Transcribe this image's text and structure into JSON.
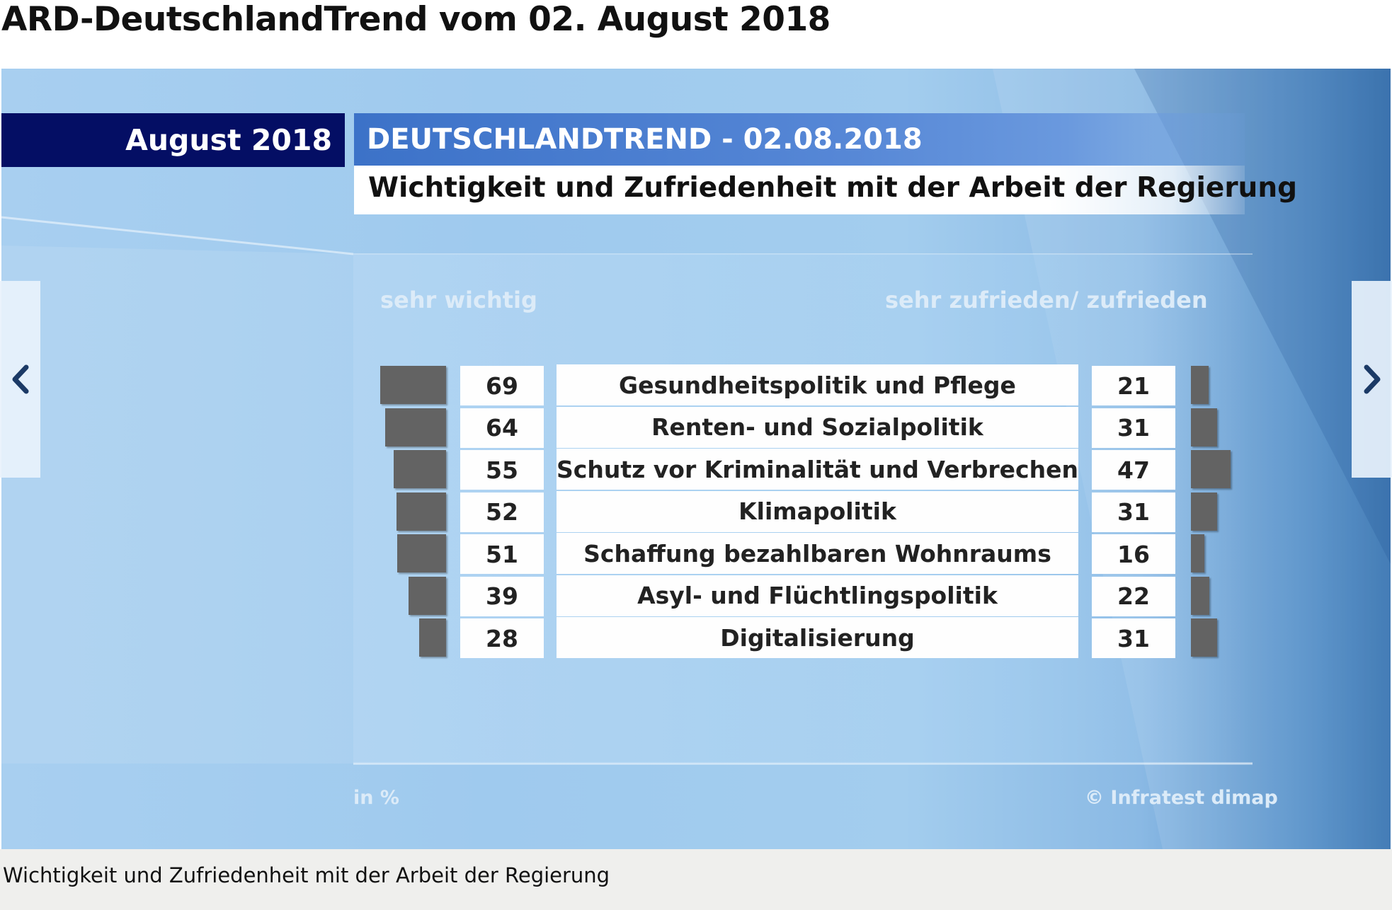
{
  "page": {
    "title": "ARD-DeutschlandTrend vom 02. August 2018",
    "caption": "Wichtigkeit und Zufriedenheit mit der Arbeit der Regierung"
  },
  "slide": {
    "month_label": "August 2018",
    "trend_label": "DEUTSCHLANDTREND - 02.08.2018",
    "subtitle": "Wichtigkeit und Zufriedenheit mit der Arbeit der Regierung",
    "left_header": "sehr wichtig",
    "right_header": "sehr zufrieden/ zufrieden",
    "unit_note": "in %",
    "source": "© Infratest dimap"
  },
  "nav": {
    "prev_icon": "chevron-left-icon",
    "next_icon": "chevron-right-icon"
  },
  "colors": {
    "bar": "#636363",
    "month_box": "#040e64",
    "trend_box": "#4a7fd2",
    "nav_arrow": "#1b3a66"
  },
  "chart_data": {
    "type": "bar",
    "categories": [
      "Gesundheitspolitik und Pflege",
      "Renten- und Sozialpolitik",
      "Schutz vor Kriminalität und Verbrechen",
      "Klimapolitik",
      "Schaffung bezahlbaren Wohnraums",
      "Asyl- und Flüchtlingspolitik",
      "Digitalisierung"
    ],
    "series": [
      {
        "name": "sehr wichtig",
        "values": [
          69,
          64,
          55,
          52,
          51,
          39,
          28
        ]
      },
      {
        "name": "sehr zufrieden/ zufrieden",
        "values": [
          21,
          31,
          47,
          31,
          16,
          22,
          31
        ]
      }
    ],
    "title": "Wichtigkeit und Zufriedenheit mit der Arbeit der Regierung",
    "xlabel": "",
    "ylabel": "in %"
  }
}
